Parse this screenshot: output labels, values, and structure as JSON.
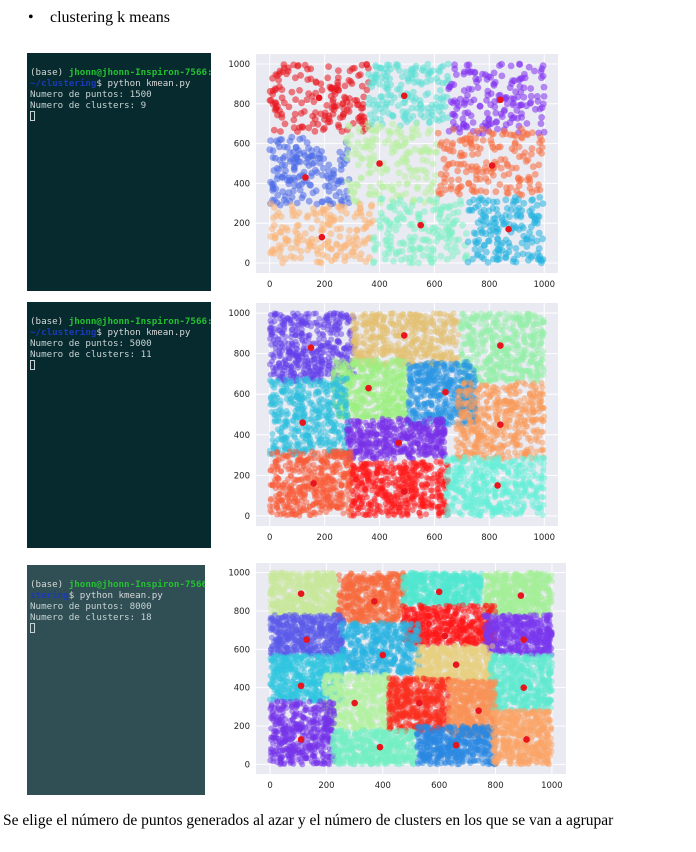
{
  "heading": {
    "bullet": "•",
    "text": "clustering k means"
  },
  "caption": "Se elige el número de puntos generados al azar y el número de clusters en los que se van a agrupar",
  "terminals": [
    {
      "prompt_base": "(base) ",
      "prompt_user": "jhonn@jhonn-Inspiron-7566:",
      "prompt_path": "~/clustering",
      "command": "$ python kmean.py",
      "line_points": "Numero de puntos: 1500",
      "line_clusters": "Numero de clusters: 9"
    },
    {
      "prompt_base": "(base) ",
      "prompt_user": "jhonn@jhonn-Inspiron-7566:",
      "prompt_path": "~/clustering",
      "command": "$ python kmean.py",
      "line_points": "Numero de puntos: 5000",
      "line_clusters": "Numero de clusters: 11"
    },
    {
      "prompt_base": "(base) ",
      "prompt_user": "jhonn@jhonn-Inspiron-7566:",
      "prompt_path": "stering",
      "command": "$ python kmean.py",
      "line_points": "Numero de puntos: 8000",
      "line_clusters": "Numero de clusters: 18"
    }
  ],
  "chart_data": [
    {
      "type": "scatter",
      "n_points": 1500,
      "xlim": [
        -50,
        1050
      ],
      "ylim": [
        -50,
        1050
      ],
      "xticks": [
        0,
        200,
        400,
        600,
        800,
        1000
      ],
      "yticks": [
        0,
        200,
        400,
        600,
        800,
        1000
      ],
      "grid": true,
      "background": "#eaeaf2",
      "centroid_color": "#e8141e",
      "clusters": [
        {
          "color": "#e8141e",
          "center": [
            180,
            830
          ],
          "box": [
            0,
            660,
            360,
            1000
          ]
        },
        {
          "color": "#5ee0d6",
          "center": [
            490,
            840
          ],
          "box": [
            360,
            690,
            650,
            1000
          ]
        },
        {
          "color": "#7f2ef0",
          "center": [
            840,
            820
          ],
          "box": [
            650,
            650,
            1000,
            1000
          ]
        },
        {
          "color": "#4a6ae8",
          "center": [
            130,
            430
          ],
          "box": [
            0,
            290,
            290,
            640
          ]
        },
        {
          "color": "#b8f0a0",
          "center": [
            400,
            500
          ],
          "box": [
            280,
            300,
            610,
            700
          ]
        },
        {
          "color": "#f86a3c",
          "center": [
            810,
            490
          ],
          "box": [
            610,
            330,
            1000,
            680
          ]
        },
        {
          "color": "#fbb474",
          "center": [
            190,
            130
          ],
          "box": [
            0,
            0,
            380,
            300
          ]
        },
        {
          "color": "#7ef0c4",
          "center": [
            550,
            190
          ],
          "box": [
            370,
            0,
            720,
            330
          ]
        },
        {
          "color": "#22b2e0",
          "center": [
            870,
            170
          ],
          "box": [
            720,
            0,
            1000,
            330
          ]
        }
      ]
    },
    {
      "type": "scatter",
      "n_points": 5000,
      "xlim": [
        -50,
        1050
      ],
      "ylim": [
        -50,
        1050
      ],
      "xticks": [
        0,
        200,
        400,
        600,
        800,
        1000
      ],
      "yticks": [
        0,
        200,
        400,
        600,
        800,
        1000
      ],
      "grid": true,
      "background": "#eaeaf2",
      "centroid_color": "#e8141e",
      "clusters": [
        {
          "color": "#6440ea",
          "center": [
            150,
            830
          ],
          "box": [
            0,
            660,
            310,
            1000
          ]
        },
        {
          "color": "#e4c070",
          "center": [
            490,
            890
          ],
          "box": [
            300,
            740,
            690,
            1000
          ]
        },
        {
          "color": "#94f0a8",
          "center": [
            840,
            840
          ],
          "box": [
            690,
            660,
            1000,
            1000
          ]
        },
        {
          "color": "#9cf080",
          "center": [
            360,
            630
          ],
          "box": [
            230,
            480,
            500,
            770
          ]
        },
        {
          "color": "#2a96e4",
          "center": [
            640,
            610
          ],
          "box": [
            500,
            450,
            750,
            760
          ]
        },
        {
          "color": "#2ec0de",
          "center": [
            120,
            460
          ],
          "box": [
            0,
            300,
            290,
            680
          ]
        },
        {
          "color": "#7830e8",
          "center": [
            470,
            360
          ],
          "box": [
            280,
            280,
            640,
            480
          ]
        },
        {
          "color": "#fa9a58",
          "center": [
            840,
            450
          ],
          "box": [
            680,
            280,
            1000,
            660
          ]
        },
        {
          "color": "#fa5a36",
          "center": [
            160,
            160
          ],
          "box": [
            0,
            0,
            300,
            320
          ]
        },
        {
          "color": "#ff1818",
          "center": [
            490,
            120
          ],
          "box": [
            300,
            0,
            650,
            270
          ]
        },
        {
          "color": "#64f0d8",
          "center": [
            830,
            150
          ],
          "box": [
            640,
            0,
            1000,
            290
          ]
        }
      ]
    },
    {
      "type": "scatter",
      "n_points": 8000,
      "xlim": [
        -50,
        1050
      ],
      "ylim": [
        -50,
        1050
      ],
      "xticks": [
        0,
        200,
        400,
        600,
        800,
        1000
      ],
      "yticks": [
        0,
        200,
        400,
        600,
        800,
        1000
      ],
      "grid": true,
      "background": "#eaeaf2",
      "centroid_color": "#e8141e",
      "clusters": [
        {
          "color": "#c8e89a",
          "center": [
            110,
            890
          ],
          "box": [
            0,
            780,
            240,
            1000
          ]
        },
        {
          "color": "#f8693c",
          "center": [
            370,
            850
          ],
          "box": [
            240,
            740,
            480,
            1000
          ]
        },
        {
          "color": "#50e8d0",
          "center": [
            600,
            900
          ],
          "box": [
            470,
            830,
            750,
            1000
          ]
        },
        {
          "color": "#a4f098",
          "center": [
            890,
            880
          ],
          "box": [
            760,
            780,
            1000,
            1000
          ]
        },
        {
          "color": "#5a5aea",
          "center": [
            130,
            650
          ],
          "box": [
            0,
            570,
            260,
            780
          ]
        },
        {
          "color": "#ff1616",
          "center": [
            620,
            670
          ],
          "box": [
            470,
            620,
            800,
            830
          ]
        },
        {
          "color": "#7a38ee",
          "center": [
            900,
            650
          ],
          "box": [
            760,
            570,
            1000,
            780
          ]
        },
        {
          "color": "#2ab4e2",
          "center": [
            400,
            570
          ],
          "box": [
            250,
            470,
            530,
            740
          ]
        },
        {
          "color": "#e8d080",
          "center": [
            660,
            520
          ],
          "box": [
            520,
            430,
            790,
            620
          ]
        },
        {
          "color": "#2ec6e0",
          "center": [
            110,
            410
          ],
          "box": [
            0,
            330,
            260,
            570
          ]
        },
        {
          "color": "#5eeacf",
          "center": [
            900,
            400
          ],
          "box": [
            780,
            280,
            1000,
            570
          ]
        },
        {
          "color": "#b2f2a0",
          "center": [
            300,
            320
          ],
          "box": [
            190,
            180,
            430,
            470
          ]
        },
        {
          "color": "#fc2e1e",
          "center": [
            530,
            320
          ],
          "box": [
            420,
            170,
            640,
            450
          ]
        },
        {
          "color": "#fa9256",
          "center": [
            740,
            280
          ],
          "box": [
            630,
            150,
            800,
            440
          ]
        },
        {
          "color": "#7432ea",
          "center": [
            110,
            130
          ],
          "box": [
            0,
            0,
            230,
            330
          ]
        },
        {
          "color": "#74f0c4",
          "center": [
            390,
            90
          ],
          "box": [
            220,
            0,
            520,
            180
          ]
        },
        {
          "color": "#2a88e2",
          "center": [
            660,
            100
          ],
          "box": [
            520,
            0,
            800,
            200
          ]
        },
        {
          "color": "#fca466",
          "center": [
            910,
            130
          ],
          "box": [
            790,
            0,
            1000,
            280
          ]
        }
      ]
    }
  ]
}
